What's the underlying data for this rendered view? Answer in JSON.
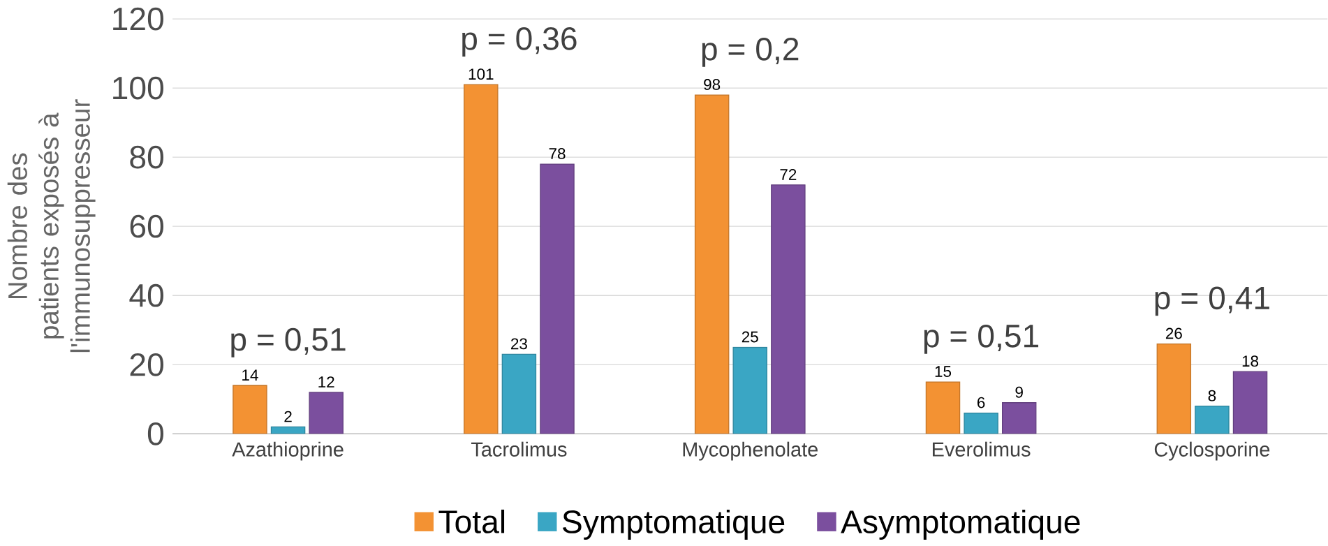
{
  "chart_data": {
    "type": "bar",
    "ylabel": "Nombre des patients exposés à l'immunosuppresseur",
    "categories": [
      "Azathioprine",
      "Tacrolimus",
      "Mycophenolate",
      "Everolimus",
      "Cyclosporine"
    ],
    "series": [
      {
        "name": "Total",
        "color": "#f39233",
        "values": [
          14,
          101,
          98,
          15,
          26
        ]
      },
      {
        "name": "Symptomatique",
        "color": "#3aa6c4",
        "values": [
          2,
          23,
          25,
          6,
          8
        ]
      },
      {
        "name": "Asymptomatique",
        "color": "#7b4f9e",
        "values": [
          12,
          78,
          72,
          9,
          18
        ]
      }
    ],
    "ylim": [
      0,
      120
    ],
    "yticks": [
      0,
      20,
      40,
      60,
      80,
      100,
      120
    ],
    "grid": "y",
    "legend": "bottom",
    "data_labels": true,
    "annotations": [
      "p = 0,51",
      "p = 0,36",
      "p = 0,2",
      "p = 0,51",
      "p = 0,41"
    ]
  }
}
